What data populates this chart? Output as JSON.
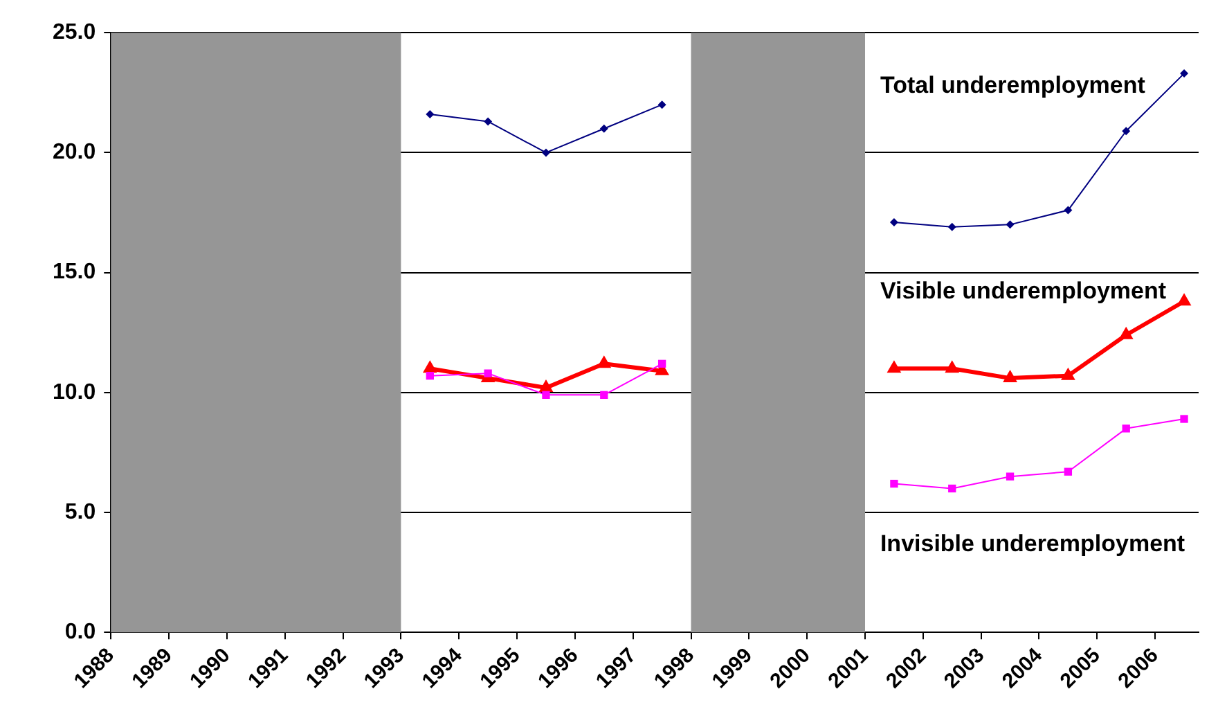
{
  "chart_data": {
    "type": "line",
    "xlim": [
      1988,
      2006.75
    ],
    "xticks": [
      1988,
      1989,
      1990,
      1991,
      1992,
      1993,
      1994,
      1995,
      1996,
      1997,
      1998,
      1999,
      2000,
      2001,
      2002,
      2003,
      2004,
      2005,
      2006
    ],
    "ylim": [
      0,
      25
    ],
    "yticks": [
      {
        "value": 0,
        "label": "0.0"
      },
      {
        "value": 5,
        "label": "5.0"
      },
      {
        "value": 10,
        "label": "10.0"
      },
      {
        "value": 15,
        "label": "15.0"
      },
      {
        "value": 20,
        "label": "20.0"
      },
      {
        "value": 25,
        "label": "25.0"
      }
    ],
    "grid": "y",
    "legend": false,
    "x": [
      1993.5,
      1994.5,
      1995.5,
      1996.5,
      1997.5,
      1998.5,
      1999.5,
      2000.5,
      2001.5,
      2002.5,
      2003.5,
      2004.5,
      2005.5,
      2006.5
    ],
    "series": [
      {
        "name": "Total underemployment",
        "color": "#000080",
        "marker": "diamond",
        "values": [
          21.6,
          21.3,
          20.0,
          21.0,
          22.0,
          null,
          null,
          null,
          17.1,
          16.9,
          17.0,
          17.6,
          20.9,
          23.3
        ]
      },
      {
        "name": "Visible underemployment",
        "color": "#ff0000",
        "marker": "triangle",
        "values": [
          11.0,
          10.6,
          10.2,
          11.2,
          10.9,
          null,
          null,
          null,
          11.0,
          11.0,
          10.6,
          10.7,
          12.4,
          13.8
        ]
      },
      {
        "name": "Invisible underemployment",
        "color": "#ff00ff",
        "marker": "square",
        "values": [
          10.7,
          10.8,
          9.9,
          9.9,
          11.2,
          null,
          null,
          null,
          6.2,
          6.0,
          6.5,
          6.7,
          8.5,
          8.9
        ]
      }
    ],
    "bands": [
      {
        "axis": "x",
        "from": 1988,
        "to": 1993,
        "color": "#969696"
      },
      {
        "axis": "x",
        "from": 1998,
        "to": 2001,
        "color": "#969696"
      }
    ]
  }
}
